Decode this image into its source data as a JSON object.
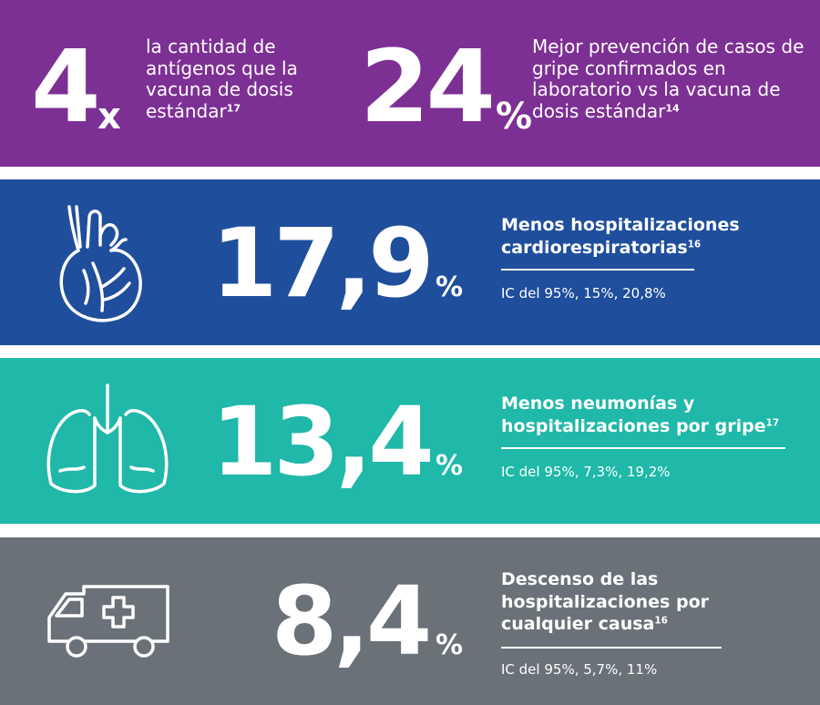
{
  "stat1": {
    "number": "4",
    "unit": "x",
    "text": "la cantidad de antígenos que la vacuna de dosis estándar",
    "ref": "17"
  },
  "stat2": {
    "number": "24",
    "unit": "%",
    "text": "Mejor prevención de casos de gripe confirmados en laboratorio vs la vacuna de dosis estándar",
    "ref": "14"
  },
  "heart": {
    "number": "17,9",
    "unit": "%",
    "heading": "Menos hospitalizaciones cardiorespiratorias",
    "ref": "16",
    "ic": "IC  del  95%, 15%, 20,8%",
    "icon": "heart-icon"
  },
  "lungs": {
    "number": "13,4",
    "unit": "%",
    "heading": "Menos neumonías y hospitalizaciones por gripe",
    "ref": "17",
    "ic": "IC del 95%, 7,3%, 19,2%",
    "icon": "lungs-icon"
  },
  "ambulance": {
    "number": "8,4",
    "unit": "%",
    "heading": "Descenso de las hospitalizaciones por cualquier causa",
    "ref": "16",
    "ic": "IC  del  95%, 5,7%, 11%",
    "icon": "ambulance-icon"
  },
  "colors": {
    "purple": "#7d3094",
    "blue": "#1f4e9c",
    "teal": "#1fb8a9",
    "gray": "#6b7178",
    "white": "#ffffff"
  }
}
